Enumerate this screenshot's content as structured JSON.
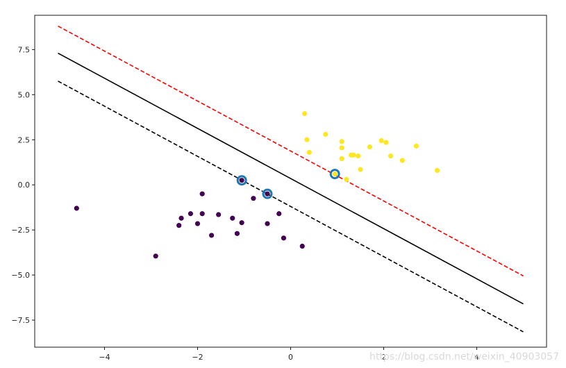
{
  "chart_data": {
    "type": "scatter",
    "title": "",
    "xlabel": "",
    "ylabel": "",
    "xlim": [
      -5.5,
      5.5
    ],
    "ylim": [
      -9.0,
      9.4
    ],
    "grid": false,
    "legend": "none",
    "x_ticks": [
      -4,
      -2,
      0,
      2,
      4
    ],
    "x_tick_labels": [
      "−4",
      "−2",
      "0",
      "2",
      "4"
    ],
    "y_ticks": [
      -7.5,
      -5.0,
      -2.5,
      0.0,
      2.5,
      5.0,
      7.5
    ],
    "y_tick_labels": [
      "−7.5",
      "−5.0",
      "−2.5",
      "0.0",
      "2.5",
      "5.0",
      "7.5"
    ],
    "series": [
      {
        "kind": "points",
        "color": "#440154",
        "points": [
          [
            -4.6,
            -1.3
          ],
          [
            -2.9,
            -3.95
          ],
          [
            -2.4,
            -2.25
          ],
          [
            -2.35,
            -1.85
          ],
          [
            -2.15,
            -1.6
          ],
          [
            -2.0,
            -2.15
          ],
          [
            -1.9,
            -1.6
          ],
          [
            -1.9,
            -0.5
          ],
          [
            -1.7,
            -2.8
          ],
          [
            -1.55,
            -1.65
          ],
          [
            -1.25,
            -1.85
          ],
          [
            -1.15,
            -2.7
          ],
          [
            -1.05,
            -2.1
          ],
          [
            -0.8,
            -0.75
          ],
          [
            -0.5,
            -2.15
          ],
          [
            -0.25,
            -1.6
          ],
          [
            -0.15,
            -2.95
          ],
          [
            0.25,
            -3.4
          ],
          [
            -1.05,
            0.25
          ],
          [
            -0.5,
            -0.5
          ]
        ]
      },
      {
        "kind": "points",
        "color": "#fde725",
        "points": [
          [
            0.3,
            3.95
          ],
          [
            0.35,
            2.5
          ],
          [
            0.4,
            1.8
          ],
          [
            0.75,
            2.8
          ],
          [
            1.1,
            2.4
          ],
          [
            1.1,
            2.05
          ],
          [
            1.1,
            1.45
          ],
          [
            1.2,
            0.3
          ],
          [
            1.3,
            1.65
          ],
          [
            1.35,
            1.65
          ],
          [
            1.45,
            1.6
          ],
          [
            1.5,
            0.85
          ],
          [
            1.7,
            2.1
          ],
          [
            1.95,
            2.45
          ],
          [
            2.05,
            2.35
          ],
          [
            2.15,
            1.6
          ],
          [
            2.4,
            1.35
          ],
          [
            2.7,
            2.15
          ],
          [
            3.15,
            0.8
          ],
          [
            0.95,
            0.6
          ]
        ]
      },
      {
        "kind": "support_vectors",
        "color": "#1f77b4",
        "points": [
          [
            -1.05,
            0.25
          ],
          [
            -0.5,
            -0.5
          ],
          [
            0.95,
            0.6
          ]
        ]
      }
    ],
    "lines": [
      {
        "name": "",
        "style": "solid",
        "color": "#000000",
        "x": [
          -5.0,
          5.0
        ],
        "y": [
          7.3,
          -6.6
        ]
      },
      {
        "name": "",
        "style": "dashed",
        "color": "#ff0000",
        "x": [
          -5.0,
          5.0
        ],
        "y": [
          8.8,
          -5.05
        ]
      },
      {
        "name": "",
        "style": "dashed",
        "color": "#000000",
        "x": [
          -5.0,
          5.0
        ],
        "y": [
          5.75,
          -8.15
        ]
      }
    ]
  },
  "watermark": "https://blog.csdn.net/weixin_40903057"
}
